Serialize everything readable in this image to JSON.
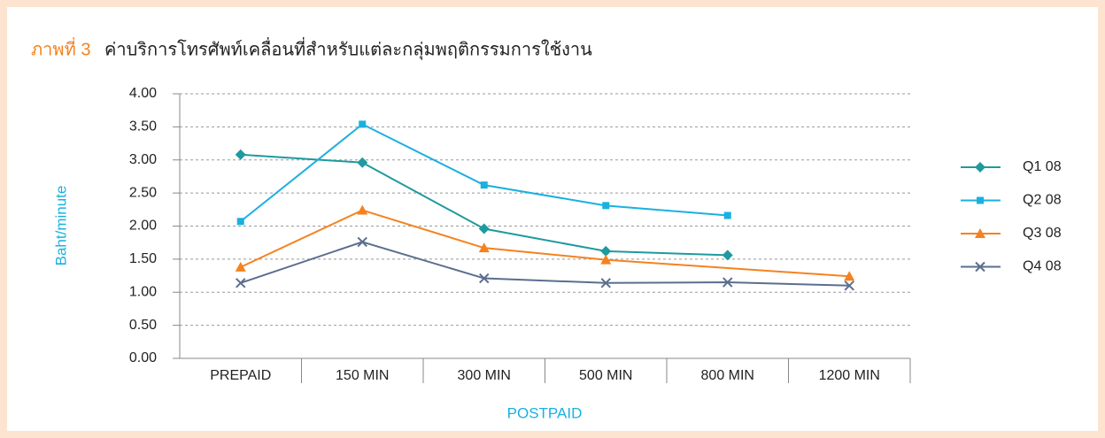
{
  "chart_data": {
    "type": "line",
    "title_prefix": "ภาพที่ 3",
    "title": "ค่าบริการโทรศัพท์เคลื่อนที่สำหรับแต่ละกลุ่มพฤติกรรมการใช้งาน",
    "ylabel": "Baht/minute",
    "xlabel": "POSTPAID",
    "categories": [
      "PREPAID",
      "150 MIN",
      "300 MIN",
      "500 MIN",
      "800 MIN",
      "1200 MIN"
    ],
    "series": [
      {
        "name": "Q1 08",
        "color": "#1f9a9e",
        "marker": "diamond",
        "values": [
          3.08,
          2.96,
          1.96,
          1.62,
          1.56,
          null
        ]
      },
      {
        "name": "Q2 08",
        "color": "#1ab0e0",
        "marker": "square",
        "values": [
          2.07,
          3.54,
          2.62,
          2.31,
          2.16,
          null
        ]
      },
      {
        "name": "Q3 08",
        "color": "#f5821f",
        "marker": "triangle",
        "values": [
          1.38,
          2.24,
          1.67,
          1.49,
          null,
          1.24
        ]
      },
      {
        "name": "Q4 08",
        "color": "#5b6e8e",
        "marker": "x",
        "values": [
          1.14,
          1.76,
          1.21,
          1.14,
          1.15,
          1.1
        ]
      }
    ],
    "connect_gaps": true,
    "ylim": [
      0,
      4
    ],
    "yticks": [
      {
        "value": 0,
        "label": "0.00"
      },
      {
        "value": 0.5,
        "label": "0.50"
      },
      {
        "value": 1,
        "label": "1.00"
      },
      {
        "value": 1.5,
        "label": "1.50"
      },
      {
        "value": 2,
        "label": "2.00"
      },
      {
        "value": 2.5,
        "label": "2.50"
      },
      {
        "value": 3,
        "label": "3.00"
      },
      {
        "value": 3.5,
        "label": "3.50"
      },
      {
        "value": 4,
        "label": "4.00"
      }
    ],
    "grid": true,
    "legend": "right"
  }
}
